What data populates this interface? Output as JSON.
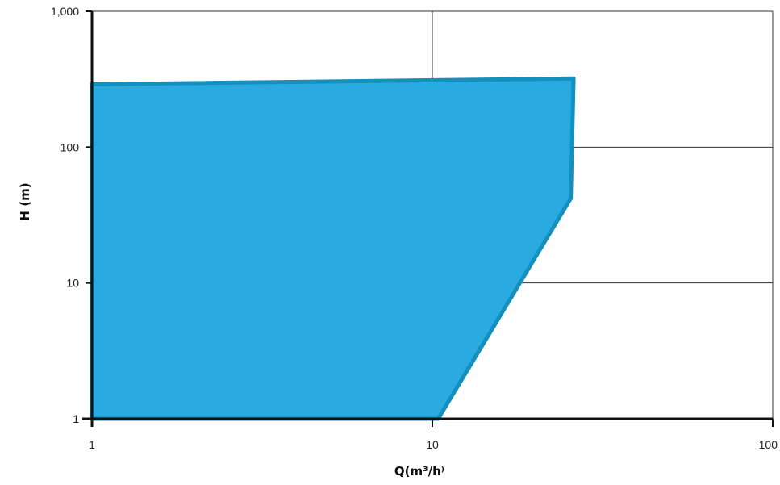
{
  "chart_data": {
    "type": "area",
    "title": "",
    "xlabel": "Q(m³/h⁾",
    "ylabel": "H (m)",
    "xscale": "log",
    "yscale": "log",
    "xlim": [
      1,
      100
    ],
    "ylim": [
      1,
      1000
    ],
    "x_ticks": [
      1,
      10,
      100
    ],
    "x_tick_labels": [
      "1",
      "10",
      "100"
    ],
    "y_ticks": [
      1,
      10,
      100,
      1000
    ],
    "y_tick_labels": [
      "1",
      "10",
      "100",
      "1,000"
    ],
    "grid": true,
    "series": [
      {
        "fill_color": "#29abe2",
        "stroke_color": "#1590bd",
        "polygon": [
          {
            "x": 1,
            "y": 1
          },
          {
            "x": 1,
            "y": 290
          },
          {
            "x": 26,
            "y": 320
          },
          {
            "x": 25.5,
            "y": 42
          },
          {
            "x": 10.4,
            "y": 1
          }
        ]
      }
    ]
  }
}
